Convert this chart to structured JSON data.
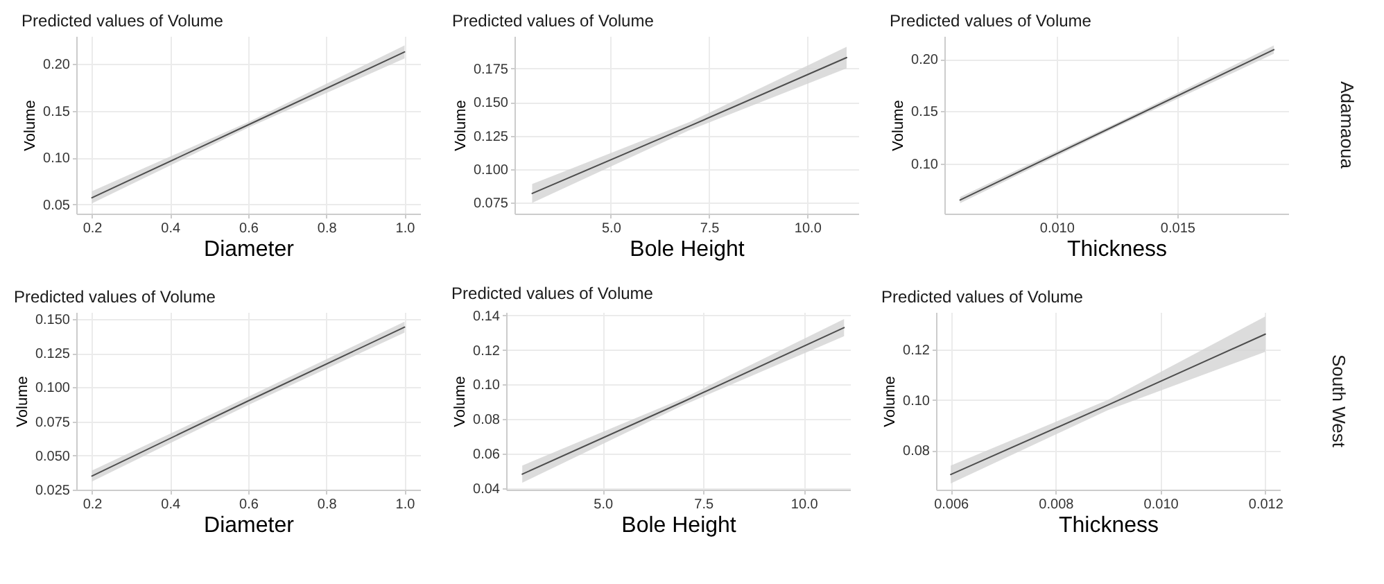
{
  "chart_data": [
    {
      "type": "line",
      "title": "Predicted values of Volume",
      "xlabel": "Diameter",
      "ylabel": "Volume",
      "x": [
        0.2,
        0.6,
        1.0
      ],
      "xlim": [
        0.16,
        1.04
      ],
      "xticks": [
        0.2,
        0.4,
        0.6,
        0.8,
        {
          "value": 1.0,
          "label": "1.0"
        }
      ],
      "ylim": [
        0.04,
        0.23
      ],
      "yticks": [
        0.05,
        {
          "value": 0.1,
          "label": "0.10"
        },
        0.15,
        {
          "value": 0.2,
          "label": "0.20"
        }
      ],
      "grid": true,
      "series": [
        {
          "color": "#4d4d4d",
          "values": [
            0.057,
            0.135,
            0.213
          ],
          "lower": [
            0.051,
            0.132,
            0.206
          ],
          "upper": [
            0.064,
            0.138,
            0.22
          ]
        }
      ]
    },
    {
      "type": "line",
      "title": "Predicted values of Volume",
      "xlabel": "Bole Height",
      "ylabel": "Volume",
      "x": [
        3,
        7,
        11
      ],
      "xlim": [
        2.55,
        11.3
      ],
      "xticks": [
        {
          "value": 5,
          "label": "5.0"
        },
        7.5,
        {
          "value": 10,
          "label": "10.0"
        }
      ],
      "ylim": [
        0.067,
        0.199
      ],
      "yticks": [
        0.075,
        {
          "value": 0.1,
          "label": "0.100"
        },
        0.125,
        {
          "value": 0.15,
          "label": "0.150"
        },
        0.175
      ],
      "grid": true,
      "series": [
        {
          "color": "#4d4d4d",
          "values": [
            0.082,
            0.132,
            0.183
          ],
          "lower": [
            0.075,
            0.129,
            0.175
          ],
          "upper": [
            0.089,
            0.135,
            0.191
          ]
        }
      ]
    },
    {
      "type": "line",
      "title": "Predicted values of Volume",
      "xlabel": "Thickness",
      "ylabel": "Volume",
      "x": [
        0.006,
        0.0125,
        0.019
      ],
      "xlim": [
        0.00535,
        0.0196
      ],
      "xticks": [
        {
          "value": 0.01,
          "label": "0.010"
        },
        0.015
      ],
      "ylim": [
        0.052,
        0.222
      ],
      "yticks": [
        {
          "value": 0.1,
          "label": "0.10"
        },
        0.15,
        {
          "value": 0.2,
          "label": "0.20"
        }
      ],
      "grid": true,
      "annotations": [
        "Adamaoua"
      ],
      "series": [
        {
          "color": "#4d4d4d",
          "values": [
            0.065,
            0.137,
            0.209
          ],
          "lower": [
            0.062,
            0.135,
            0.205
          ],
          "upper": [
            0.068,
            0.139,
            0.213
          ]
        }
      ]
    },
    {
      "type": "line",
      "title": "Predicted values of Volume",
      "xlabel": "Diameter",
      "ylabel": "Volume",
      "x": [
        0.2,
        0.6,
        1.0
      ],
      "xlim": [
        0.16,
        1.04
      ],
      "xticks": [
        0.2,
        0.4,
        0.6,
        0.8,
        {
          "value": 1.0,
          "label": "1.0"
        }
      ],
      "ylim": [
        0.025,
        0.155
      ],
      "yticks": [
        0.025,
        {
          "value": 0.05,
          "label": "0.050"
        },
        0.075,
        {
          "value": 0.1,
          "label": "0.100"
        },
        0.125,
        {
          "value": 0.15,
          "label": "0.150"
        }
      ],
      "grid": true,
      "series": [
        {
          "color": "#4d4d4d",
          "values": [
            0.035,
            0.09,
            0.144
          ],
          "lower": [
            0.031,
            0.087,
            0.14
          ],
          "upper": [
            0.039,
            0.093,
            0.148
          ]
        }
      ]
    },
    {
      "type": "line",
      "title": "Predicted values of Volume",
      "xlabel": "Bole Height",
      "ylabel": "Volume",
      "x": [
        3,
        7,
        11
      ],
      "xlim": [
        2.6,
        11.15
      ],
      "xticks": [
        {
          "value": 5,
          "label": "5.0"
        },
        7.5,
        {
          "value": 10,
          "label": "10.0"
        }
      ],
      "ylim": [
        0.039,
        0.142
      ],
      "yticks": [
        0.04,
        0.06,
        0.08,
        {
          "value": 0.1,
          "label": "0.10"
        },
        0.12,
        0.14
      ],
      "grid": true,
      "series": [
        {
          "color": "#4d4d4d",
          "values": [
            0.048,
            0.09,
            0.133
          ],
          "lower": [
            0.043,
            0.088,
            0.128
          ],
          "upper": [
            0.053,
            0.092,
            0.138
          ]
        }
      ]
    },
    {
      "type": "line",
      "title": "Predicted values of Volume",
      "xlabel": "Thickness",
      "ylabel": "Volume",
      "x": [
        0.006,
        0.009,
        0.012
      ],
      "xlim": [
        0.00572,
        0.01228
      ],
      "xticks": [
        0.006,
        0.008,
        {
          "value": 0.01,
          "label": "0.010"
        },
        0.012
      ],
      "ylim": [
        0.0645,
        0.1347
      ],
      "yticks": [
        0.08,
        {
          "value": 0.1,
          "label": "0.10"
        },
        0.12
      ],
      "grid": true,
      "annotations": [
        "South West"
      ],
      "series": [
        {
          "color": "#4d4d4d",
          "values": [
            0.0705,
            0.098,
            0.126
          ],
          "lower": [
            0.067,
            0.096,
            0.119
          ],
          "upper": [
            0.074,
            0.1,
            0.133
          ]
        }
      ]
    }
  ]
}
